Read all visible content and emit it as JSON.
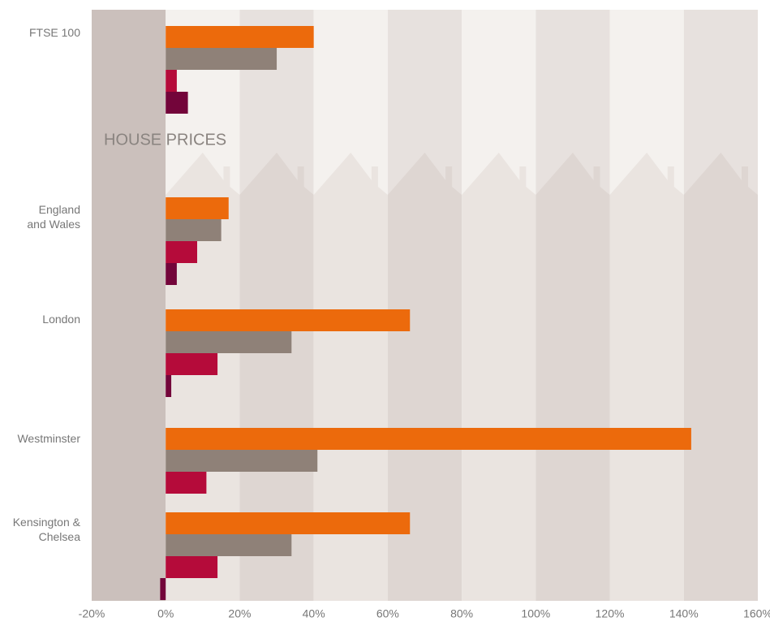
{
  "chart_data": {
    "type": "bar",
    "orientation": "horizontal",
    "annotation": "HOUSE PRICES",
    "categories": [
      "FTSE 100",
      "England\nand Wales",
      "London",
      "Westminster",
      "Kensington &\nChelsea"
    ],
    "series": [
      {
        "color": "#ec6a0c",
        "values": [
          40,
          17,
          66,
          142,
          66
        ]
      },
      {
        "color": "#8f8178",
        "values": [
          30,
          15,
          34,
          41,
          34
        ]
      },
      {
        "color": "#b50b3a",
        "values": [
          3,
          8.5,
          14,
          11,
          14
        ]
      },
      {
        "color": "#73053a",
        "values": [
          6,
          3,
          1.5,
          null,
          -1.5
        ]
      }
    ],
    "xlim": [
      -20,
      160
    ],
    "xticks": [
      {
        "value": -20,
        "label": "-20%"
      },
      {
        "value": 0,
        "label": "0%"
      },
      {
        "value": 20,
        "label": "20%"
      },
      {
        "value": 40,
        "label": "40%"
      },
      {
        "value": 60,
        "label": "60%"
      },
      {
        "value": 80,
        "label": "80%"
      },
      {
        "value": 100,
        "label": "100%"
      },
      {
        "value": 120,
        "label": "120%"
      },
      {
        "value": 140,
        "label": "140%"
      },
      {
        "value": 160,
        "label": "160%"
      }
    ]
  }
}
